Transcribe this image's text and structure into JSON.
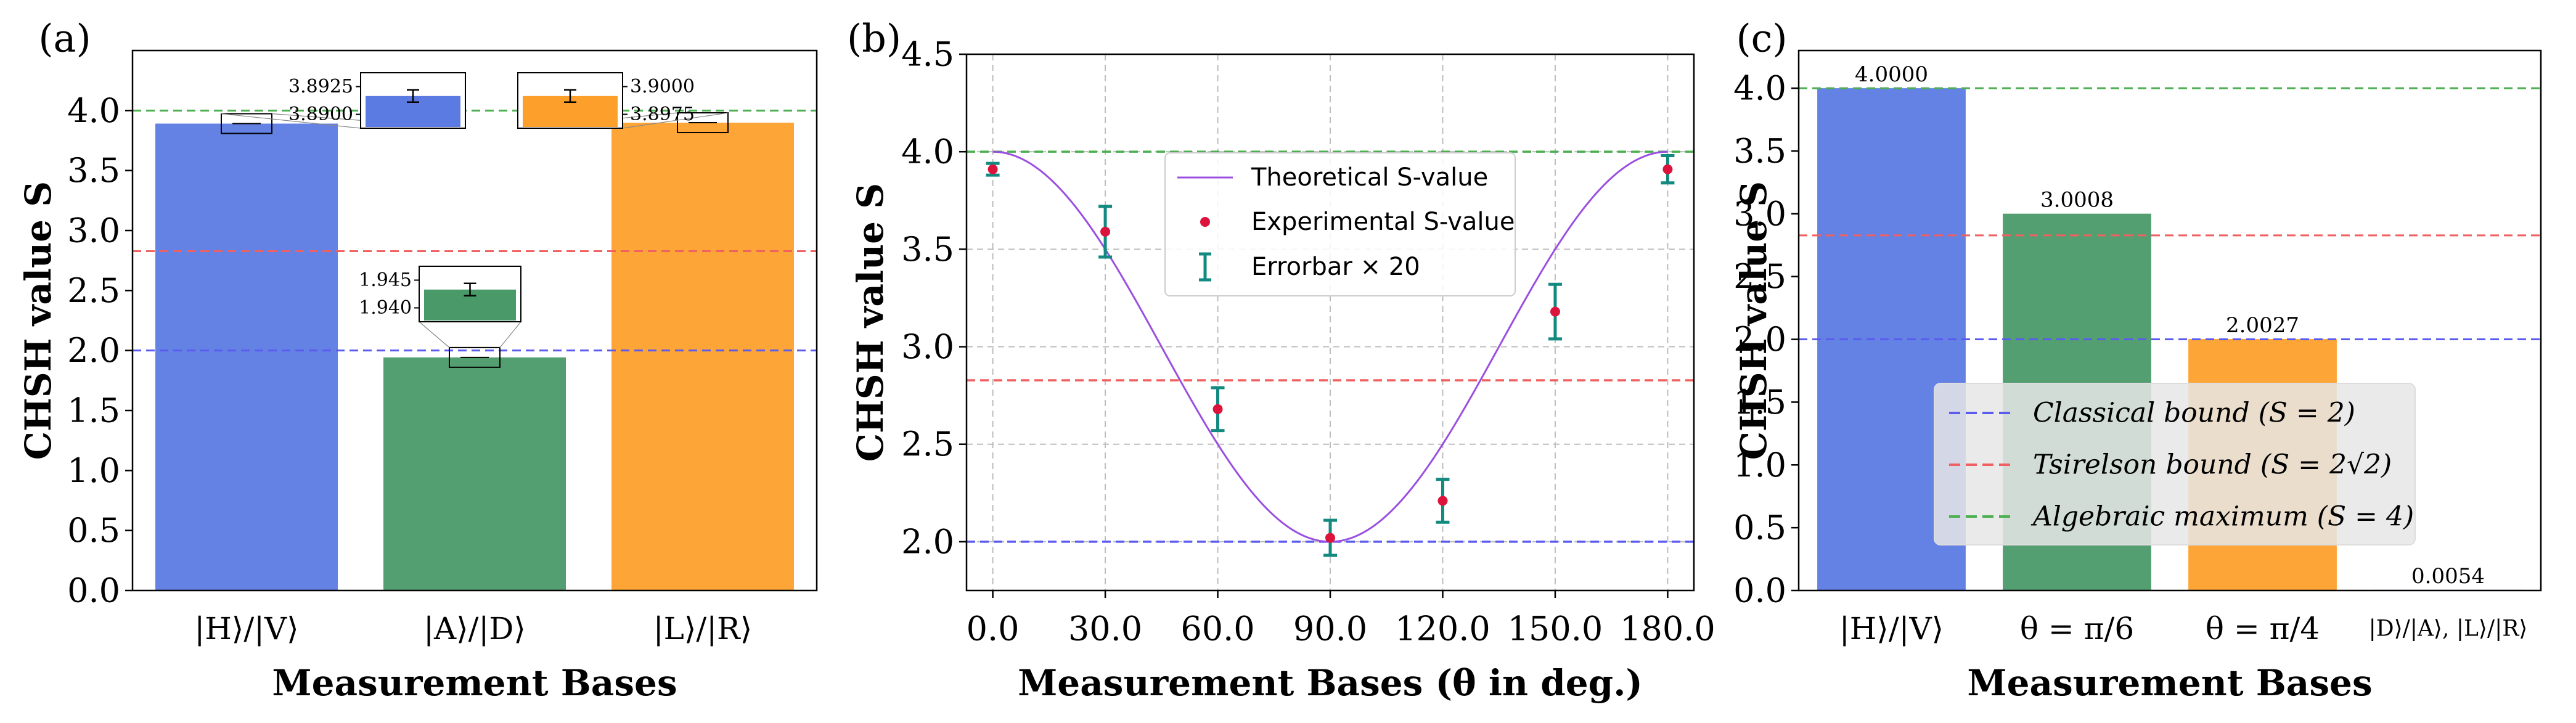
{
  "colors": {
    "blue": "#5b7be3",
    "green": "#4a9a69",
    "orange": "#fda02b",
    "classical": "#5b5bf0",
    "tsirelson": "#f06060",
    "algebraic": "#4caf50",
    "theory": "#9b4fe0",
    "exp_point": "#dc143c",
    "errorbar": "#138a80",
    "grid": "#bdbdbd"
  },
  "chart_data": [
    {
      "type": "bar",
      "panel_label": "(a)",
      "xlabel": "Measurement Bases",
      "ylabel": "CHSH value S",
      "ylim": [
        0,
        4.5
      ],
      "yticks": [
        "0.0",
        "0.5",
        "1.0",
        "1.5",
        "2.0",
        "2.5",
        "3.0",
        "3.5",
        "4.0"
      ],
      "categories": [
        "|H⟩/|V⟩",
        "|A⟩/|D⟩",
        "|L⟩/|R⟩"
      ],
      "values": [
        3.8912,
        1.9425,
        3.8988
      ],
      "reference_lines": [
        {
          "name": "Classical bound",
          "value": 2.0
        },
        {
          "name": "Tsirelson bound",
          "value": 2.828
        },
        {
          "name": "Algebraic maximum",
          "value": 4.0
        }
      ],
      "insets": [
        {
          "bar": 0,
          "tick_labels": [
            "3.8925",
            "3.8900"
          ]
        },
        {
          "bar": 1,
          "tick_labels": [
            "1.945",
            "1.940"
          ]
        },
        {
          "bar": 2,
          "tick_labels": [
            "3.9000",
            "3.8975"
          ]
        }
      ]
    },
    {
      "type": "line",
      "panel_label": "(b)",
      "xlabel": "Measurement Bases  (θ in deg.)",
      "ylabel": "CHSH value S",
      "xlim": [
        -7,
        187
      ],
      "ylim": [
        1.75,
        4.5
      ],
      "xticks": [
        "0.0",
        "30.0",
        "60.0",
        "90.0",
        "120.0",
        "150.0",
        "180.0"
      ],
      "yticks": [
        "2.0",
        "2.5",
        "3.0",
        "3.5",
        "4.0",
        "4.5"
      ],
      "grid": true,
      "theory": {
        "name": "Theoretical S-value",
        "formula": "3 + cos(2θ)"
      },
      "experiment": {
        "name": "Experimental S-value",
        "x": [
          0,
          30,
          60,
          90,
          120,
          150,
          180
        ],
        "y": [
          3.91,
          3.59,
          2.68,
          2.02,
          2.21,
          3.18,
          3.91
        ],
        "err": [
          0.03,
          0.13,
          0.11,
          0.09,
          0.11,
          0.14,
          0.07
        ]
      },
      "errorbar_label": "Errorbar × 20",
      "reference_lines": [
        2.0,
        2.828,
        4.0
      ],
      "legend": [
        "Theoretical S-value",
        "Experimental S-value",
        "Errorbar × 20"
      ]
    },
    {
      "type": "bar",
      "panel_label": "(c)",
      "xlabel": "Measurement Bases",
      "ylabel": "CHSH value S",
      "ylim": [
        0,
        4.3
      ],
      "yticks": [
        "0.0",
        "0.5",
        "1.0",
        "1.5",
        "2.0",
        "2.5",
        "3.0",
        "3.5",
        "4.0"
      ],
      "categories": [
        "|H⟩/|V⟩",
        "θ = π/6",
        "θ = π/4",
        "|D⟩/|A⟩, |L⟩/|R⟩"
      ],
      "values": [
        4.0,
        3.0008,
        2.0027,
        0.0054
      ],
      "value_labels": [
        "4.0000",
        "3.0008",
        "2.0027",
        "0.0054"
      ],
      "legend": [
        {
          "name": "Classical bound (S = 2)",
          "value": 2.0
        },
        {
          "name": "Tsirelson bound (S = 2√2)",
          "value": 2.828
        },
        {
          "name": "Algebraic maximum (S = 4)",
          "value": 4.0
        }
      ]
    }
  ]
}
